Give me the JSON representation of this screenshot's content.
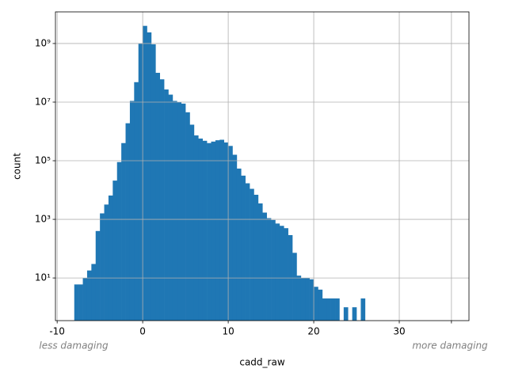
{
  "chart_data": {
    "type": "histogram",
    "xlabel": "cadd_raw",
    "ylabel": "count",
    "annotations": [
      "less damaging",
      "more damaging"
    ],
    "color": "#1f77b4",
    "log_y": true,
    "grid": true,
    "bins": [
      -8,
      -7.5,
      -7,
      -6.5,
      -6,
      -5.5,
      -5,
      -4.5,
      -4,
      -3.5,
      -3,
      -2.5,
      -2,
      -1.5,
      -1,
      -0.5,
      0,
      0.5,
      1,
      1.5,
      2,
      2.5,
      3,
      3.5,
      4,
      4.5,
      5,
      5.5,
      6,
      6.5,
      7,
      7.5,
      8,
      8.5,
      9,
      9.5,
      10,
      10.5,
      11,
      11.5,
      12,
      12.5,
      13,
      13.5,
      14,
      14.5,
      15,
      15.5,
      16,
      16.5,
      17,
      17.5,
      18,
      18.5,
      19,
      19.5,
      20,
      20.5,
      21,
      21.5,
      22,
      22.5,
      23,
      23.5,
      24,
      24.5,
      25,
      25.5,
      26
    ],
    "values": [
      6,
      6,
      10,
      18,
      30,
      400,
      1600,
      3200,
      6500,
      21000,
      90000,
      400000,
      1900000,
      11000000,
      48000000,
      1000000000,
      4000000000,
      2400000000,
      940000000,
      100000000,
      60000000,
      27000000,
      18000000,
      11000000,
      10000000,
      8900000,
      4500000,
      1700000,
      730000,
      570000,
      480000,
      400000,
      450000,
      500000,
      520000,
      420000,
      320000,
      160000,
      54000,
      31000,
      17000,
      11000,
      6900,
      3500,
      1700,
      1100,
      950,
      720,
      600,
      500,
      290,
      72,
      12,
      10,
      10,
      9,
      5,
      4,
      2,
      2,
      2,
      2,
      0,
      1,
      0,
      1,
      0,
      2
    ],
    "xlim": [
      -10.2,
      38.15
    ],
    "xticks": [
      -10,
      0,
      10,
      20,
      30,
      {
        "value": 36.1,
        "label": null
      }
    ],
    "ylim": [
      0.35,
      12000000000
    ],
    "yticks": [
      {
        "value": 10,
        "label": "10¹"
      },
      {
        "value": 1000,
        "label": "10³"
      },
      {
        "value": 100000,
        "label": "10⁵"
      },
      {
        "value": 10000000,
        "label": "10⁷"
      },
      {
        "value": 1000000000,
        "label": "10⁹"
      }
    ]
  }
}
